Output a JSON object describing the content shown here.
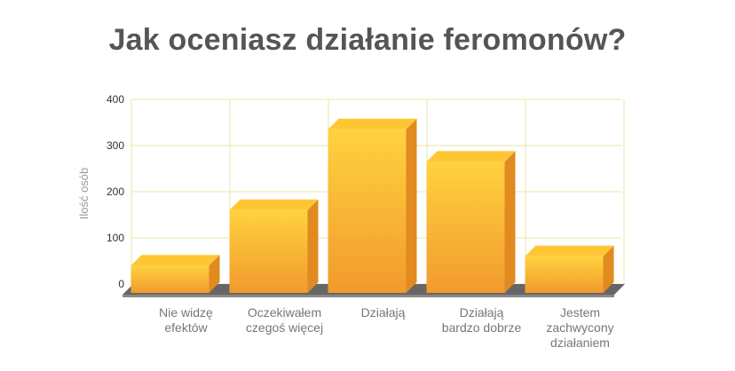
{
  "chart_data": {
    "type": "bar",
    "title": "Jak oceniasz działanie feromonów?",
    "ylabel": "Ilość osób",
    "xlabel": "",
    "ylim": [
      0,
      400
    ],
    "yticks": [
      0,
      100,
      200,
      300,
      400
    ],
    "grid": true,
    "categories": [
      [
        "Nie widzę",
        "efektów"
      ],
      [
        "Oczekiwałem",
        "czegoś więcej"
      ],
      [
        "Działają"
      ],
      [
        "Działają",
        "bardzo dobrze"
      ],
      [
        "Jestem",
        "zachwycony",
        "działaniem"
      ]
    ],
    "values": [
      40,
      160,
      335,
      265,
      60
    ],
    "colors": {
      "bar_top": "#ffd23e",
      "bar_bottom": "#f29a2e",
      "bar_cap": "#ffc634",
      "bar_side": "#e08a20",
      "floor": "#666666",
      "grid": "#e9e7a8"
    }
  }
}
